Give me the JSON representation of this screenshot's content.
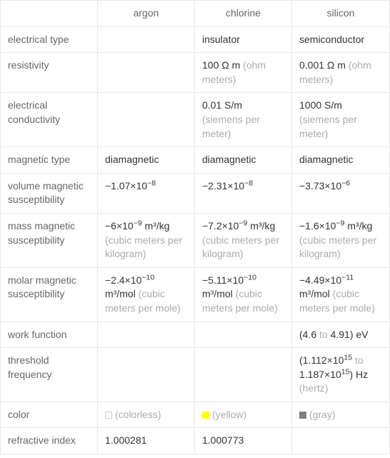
{
  "headers": {
    "blank": "",
    "argon": "argon",
    "chlorine": "chlorine",
    "silicon": "silicon"
  },
  "rows": {
    "electrical_type": {
      "label": "electrical type",
      "argon": "",
      "chlorine": "insulator",
      "silicon": "semiconductor"
    },
    "resistivity": {
      "label": "resistivity",
      "argon": "",
      "chlorine_val": "100 Ω m",
      "chlorine_unit": "(ohm meters)",
      "silicon_val": "0.001 Ω m",
      "silicon_unit": "(ohm meters)"
    },
    "electrical_conductivity": {
      "label": "electrical conductivity",
      "argon": "",
      "chlorine_val": "0.01 S/m",
      "chlorine_unit": "(siemens per meter)",
      "silicon_val": "1000 S/m",
      "silicon_unit": "(siemens per meter)"
    },
    "magnetic_type": {
      "label": "magnetic type",
      "argon": "diamagnetic",
      "chlorine": "diamagnetic",
      "silicon": "diamagnetic"
    },
    "volume_magnetic_susceptibility": {
      "label": "volume magnetic susceptibility",
      "argon_mantissa": "−1.07×10",
      "argon_exp": "−8",
      "chlorine_mantissa": "−2.31×10",
      "chlorine_exp": "−8",
      "silicon_mantissa": "−3.73×10",
      "silicon_exp": "−6"
    },
    "mass_magnetic_susceptibility": {
      "label": "mass magnetic susceptibility",
      "argon_mantissa": "−6×10",
      "argon_exp": "−9",
      "argon_unit_inline": " m³/kg",
      "argon_unit": "(cubic meters per kilogram)",
      "chlorine_mantissa": "−7.2×10",
      "chlorine_exp": "−9",
      "chlorine_unit_inline": " m³/kg",
      "chlorine_unit": "(cubic meters per kilogram)",
      "silicon_mantissa": "−1.6×10",
      "silicon_exp": "−9",
      "silicon_unit_inline": " m³/kg",
      "silicon_unit": "(cubic meters per kilogram)"
    },
    "molar_magnetic_susceptibility": {
      "label": "molar magnetic susceptibility",
      "argon_mantissa": "−2.4×10",
      "argon_exp": "−10",
      "argon_unit_inline": " m³/mol",
      "argon_unit": "(cubic meters per mole)",
      "chlorine_mantissa": "−5.11×10",
      "chlorine_exp": "−10",
      "chlorine_unit_inline": " m³/mol",
      "chlorine_unit": "(cubic meters per mole)",
      "silicon_mantissa": "−4.49×10",
      "silicon_exp": "−11",
      "silicon_unit_inline": " m³/mol",
      "silicon_unit": "(cubic meters per mole)"
    },
    "work_function": {
      "label": "work function",
      "argon": "",
      "chlorine": "",
      "silicon_pre": "(4.6",
      "silicon_to": " to ",
      "silicon_post": "4.91) eV"
    },
    "threshold_frequency": {
      "label": "threshold frequency",
      "argon": "",
      "chlorine": "",
      "silicon_pre": "(1.112×10",
      "silicon_exp1": "15",
      "silicon_to": " to ",
      "silicon_mid": "1.187×10",
      "silicon_exp2": "15",
      "silicon_post": ") Hz",
      "silicon_unit": "(hertz)"
    },
    "color": {
      "label": "color",
      "argon_swatch": "#ffffff",
      "argon_text": "(colorless)",
      "chlorine_swatch": "#ffff00",
      "chlorine_text": "(yellow)",
      "silicon_swatch": "#808080",
      "silicon_text": "(gray)"
    },
    "refractive_index": {
      "label": "refractive index",
      "argon": "1.000281",
      "chlorine": "1.000773",
      "silicon": ""
    }
  },
  "colors": {
    "label": "#666666",
    "value": "#333333",
    "unit": "#aaaaaa",
    "border": "#e8e8e8"
  }
}
